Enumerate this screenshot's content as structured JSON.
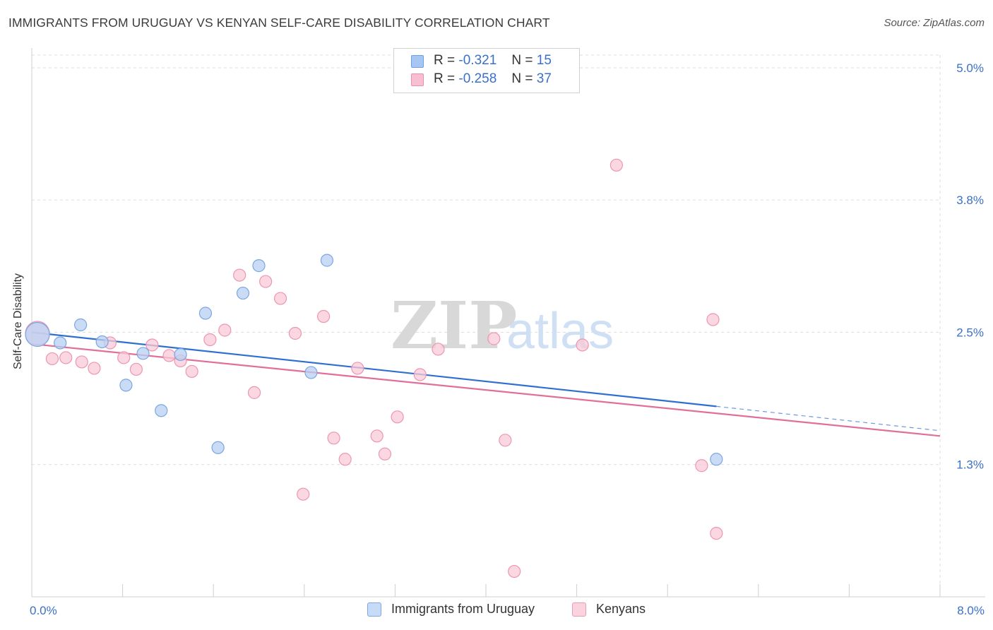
{
  "title": "IMMIGRANTS FROM URUGUAY VS KENYAN SELF-CARE DISABILITY CORRELATION CHART",
  "source": "Source: ZipAtlas.com",
  "watermark": {
    "zip": "ZIP",
    "atlas": "atlas"
  },
  "legend": {
    "rows": [
      {
        "r_label": "R =",
        "r_value": "-0.321",
        "n_label": "N =",
        "n_value": "15",
        "color": "#a7c6f2",
        "border": "#6f9fe0"
      },
      {
        "r_label": "R =",
        "r_value": "-0.258",
        "n_label": "N =",
        "n_value": "37",
        "color": "#f7bfd0",
        "border": "#ea8fae"
      }
    ]
  },
  "bottom_legend": [
    {
      "label": "Immigrants from Uruguay",
      "color": "#c6dbf7",
      "border": "#7ea8e4"
    },
    {
      "label": "Kenyans",
      "color": "#fbd3df",
      "border": "#ec9ab5"
    }
  ],
  "colors": {
    "blue_fill": "#b8d0f2",
    "blue_stroke": "#7aa6e2",
    "blue_line": "#2f6fd0",
    "pink_fill": "#f9c9d8",
    "pink_stroke": "#ec96b2",
    "pink_line": "#e0709a",
    "tick_text": "#3a70c9",
    "grid": "#dddddd"
  },
  "chart_data": {
    "type": "scatter",
    "title": "IMMIGRANTS FROM URUGUAY VS KENYAN SELF-CARE DISABILITY CORRELATION CHART",
    "xlabel": "",
    "ylabel": "Self-Care Disability",
    "xlim": [
      0.0,
      8.0
    ],
    "ylim": [
      0.0,
      5.12
    ],
    "x_tick_labels": [
      {
        "value": 0.0,
        "label": "0.0%"
      },
      {
        "value": 8.0,
        "label": "8.0%"
      }
    ],
    "y_tick_labels": [
      {
        "value": 1.25,
        "label": "1.3%"
      },
      {
        "value": 2.5,
        "label": "2.5%"
      },
      {
        "value": 3.75,
        "label": "3.8%"
      },
      {
        "value": 5.0,
        "label": "5.0%"
      }
    ],
    "grid": true,
    "legend_position": "top-center",
    "series": [
      {
        "name": "Immigrants from Uruguay",
        "points": [
          {
            "x": 0.05,
            "y": 2.48,
            "large": true
          },
          {
            "x": 0.25,
            "y": 2.4
          },
          {
            "x": 0.43,
            "y": 2.57
          },
          {
            "x": 0.62,
            "y": 2.41
          },
          {
            "x": 0.83,
            "y": 2.0
          },
          {
            "x": 0.98,
            "y": 2.3
          },
          {
            "x": 1.14,
            "y": 1.76
          },
          {
            "x": 1.31,
            "y": 2.29
          },
          {
            "x": 1.53,
            "y": 2.68
          },
          {
            "x": 1.64,
            "y": 1.41
          },
          {
            "x": 1.86,
            "y": 2.87
          },
          {
            "x": 2.0,
            "y": 3.13
          },
          {
            "x": 2.46,
            "y": 2.12
          },
          {
            "x": 2.6,
            "y": 3.18
          },
          {
            "x": 6.03,
            "y": 1.3
          }
        ],
        "trend": {
          "x0": 0.0,
          "y0": 2.5,
          "x1": 6.03,
          "y1": 1.8,
          "dash_to_x": 8.0,
          "dash_to_y": 1.57
        }
      },
      {
        "name": "Kenyans",
        "points": [
          {
            "x": 0.05,
            "y": 2.49,
            "large": true
          },
          {
            "x": 0.18,
            "y": 2.25
          },
          {
            "x": 0.3,
            "y": 2.26
          },
          {
            "x": 0.44,
            "y": 2.22
          },
          {
            "x": 0.55,
            "y": 2.16
          },
          {
            "x": 0.69,
            "y": 2.4
          },
          {
            "x": 0.81,
            "y": 2.26
          },
          {
            "x": 0.92,
            "y": 2.15
          },
          {
            "x": 1.06,
            "y": 2.38
          },
          {
            "x": 1.21,
            "y": 2.28
          },
          {
            "x": 1.31,
            "y": 2.23
          },
          {
            "x": 1.41,
            "y": 2.13
          },
          {
            "x": 1.57,
            "y": 2.43
          },
          {
            "x": 1.7,
            "y": 2.52
          },
          {
            "x": 1.83,
            "y": 3.04
          },
          {
            "x": 1.96,
            "y": 1.93
          },
          {
            "x": 2.06,
            "y": 2.98
          },
          {
            "x": 2.19,
            "y": 2.82
          },
          {
            "x": 2.32,
            "y": 2.49
          },
          {
            "x": 2.39,
            "y": 0.97
          },
          {
            "x": 2.57,
            "y": 2.65
          },
          {
            "x": 2.66,
            "y": 1.5
          },
          {
            "x": 2.76,
            "y": 1.3
          },
          {
            "x": 2.87,
            "y": 2.16
          },
          {
            "x": 3.04,
            "y": 1.52
          },
          {
            "x": 3.11,
            "y": 1.35
          },
          {
            "x": 3.22,
            "y": 1.7
          },
          {
            "x": 3.42,
            "y": 2.1
          },
          {
            "x": 3.58,
            "y": 2.34
          },
          {
            "x": 4.07,
            "y": 2.44
          },
          {
            "x": 4.17,
            "y": 1.48
          },
          {
            "x": 4.25,
            "y": 0.24
          },
          {
            "x": 4.85,
            "y": 2.38
          },
          {
            "x": 5.15,
            "y": 4.08
          },
          {
            "x": 5.9,
            "y": 1.24
          },
          {
            "x": 6.0,
            "y": 2.62
          },
          {
            "x": 6.03,
            "y": 0.6
          }
        ],
        "trend": {
          "x0": 0.0,
          "y0": 2.39,
          "x1": 8.0,
          "y1": 1.52
        }
      }
    ]
  }
}
